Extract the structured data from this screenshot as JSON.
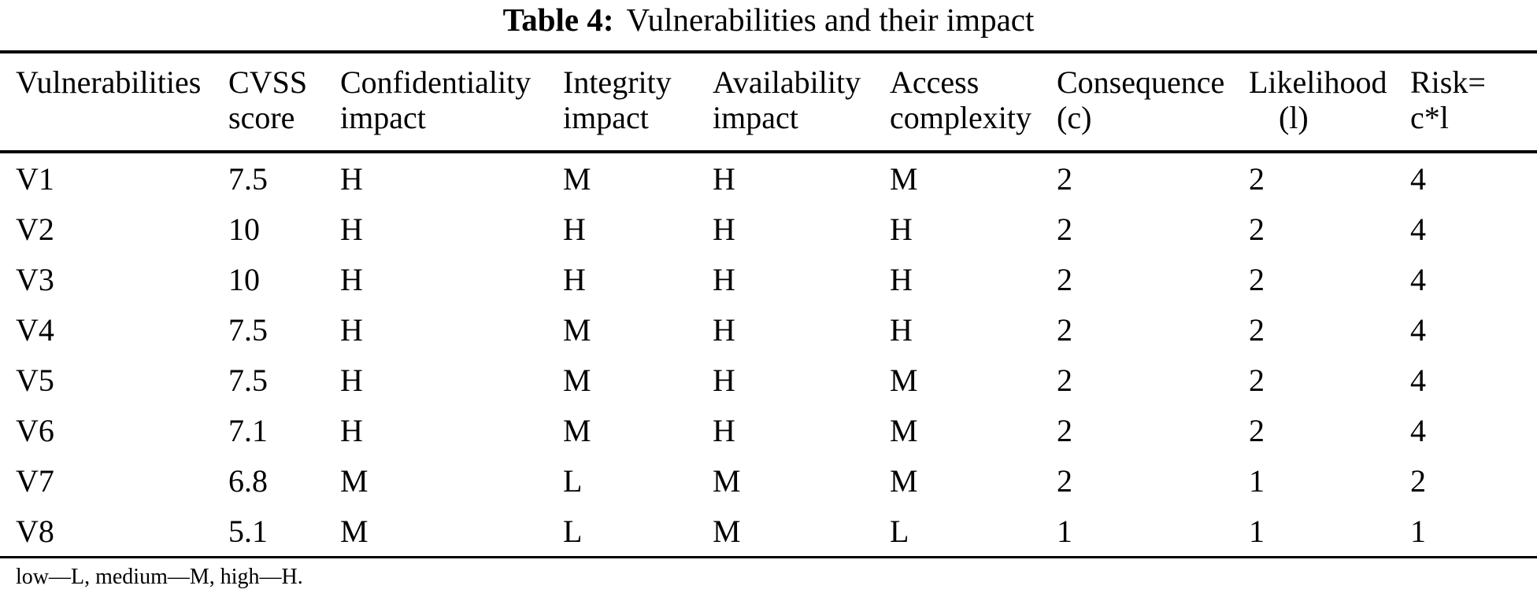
{
  "caption": {
    "label": "Table 4:",
    "text": "Vulnerabilities and their impact"
  },
  "columns": [
    {
      "id": "vulnerabilities",
      "line1": "Vulnerabilities",
      "line2": ""
    },
    {
      "id": "cvss-score",
      "line1": "CVSS",
      "line2": "score"
    },
    {
      "id": "confidentiality-impact",
      "line1": "Confidentiality",
      "line2": "impact"
    },
    {
      "id": "integrity-impact",
      "line1": "Integrity",
      "line2": "impact"
    },
    {
      "id": "availability-impact",
      "line1": "Availability",
      "line2": "impact"
    },
    {
      "id": "access-complexity",
      "line1": "Access",
      "line2": "complexity"
    },
    {
      "id": "consequence",
      "line1": "Consequence",
      "line2": "(c)"
    },
    {
      "id": "likelihood",
      "line1": "Likelihood",
      "line2": "(l)",
      "indent2": true
    },
    {
      "id": "risk",
      "line1": "Risk=",
      "line2": "c*l"
    }
  ],
  "rows": [
    [
      "V1",
      "7.5",
      "H",
      "M",
      "H",
      "M",
      "2",
      "2",
      "4"
    ],
    [
      "V2",
      "10",
      "H",
      "H",
      "H",
      "H",
      "2",
      "2",
      "4"
    ],
    [
      "V3",
      "10",
      "H",
      "H",
      "H",
      "H",
      "2",
      "2",
      "4"
    ],
    [
      "V4",
      "7.5",
      "H",
      "M",
      "H",
      "H",
      "2",
      "2",
      "4"
    ],
    [
      "V5",
      "7.5",
      "H",
      "M",
      "H",
      "M",
      "2",
      "2",
      "4"
    ],
    [
      "V6",
      "7.1",
      "H",
      "M",
      "H",
      "M",
      "2",
      "2",
      "4"
    ],
    [
      "V7",
      "6.8",
      "M",
      "L",
      "M",
      "M",
      "2",
      "1",
      "2"
    ],
    [
      "V8",
      "5.1",
      "M",
      "L",
      "M",
      "L",
      "1",
      "1",
      "1"
    ]
  ],
  "footnote": "low—L, medium—M, high—H."
}
